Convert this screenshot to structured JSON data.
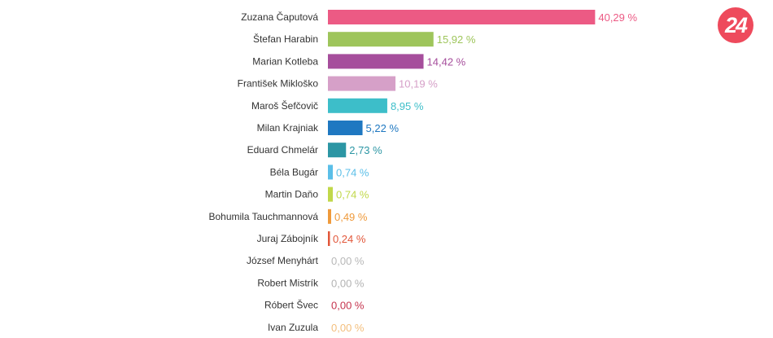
{
  "chart_data": {
    "type": "bar",
    "orientation": "horizontal",
    "categories": [
      "Zuzana Čaputová",
      "Štefan Harabin",
      "Marian Kotleba",
      "František Mikloško",
      "Maroš Šefčovič",
      "Milan Krajniak",
      "Eduard Chmelár",
      "Béla Bugár",
      "Martin Daňo",
      "Bohumila Tauchmannová",
      "Juraj Zábojník",
      "József Menyhárt",
      "Robert Mistrík",
      "Róbert Švec",
      "Ivan Zuzula"
    ],
    "values": [
      40.29,
      15.92,
      14.42,
      10.19,
      8.95,
      5.22,
      2.73,
      0.74,
      0.74,
      0.49,
      0.24,
      0.0,
      0.0,
      0.0,
      0.0
    ],
    "value_labels": [
      "40,29 %",
      "15,92 %",
      "14,42 %",
      "10,19 %",
      "8,95 %",
      "5,22 %",
      "2,73 %",
      "0,74 %",
      "0,74 %",
      "0,49 %",
      "0,24 %",
      "0,00 %",
      "0,00 %",
      "0,00 %",
      "0,00 %"
    ],
    "colors": [
      "#ec5a84",
      "#9ec55b",
      "#a64e9c",
      "#d6a0c8",
      "#3dbec9",
      "#1f78c1",
      "#2c96a4",
      "#5bbfe8",
      "#c1d84a",
      "#ef9a3b",
      "#e2573a",
      "#b8b8b8",
      "#b3b3b3",
      "#c5344e",
      "#f3be7c"
    ],
    "xlim": [
      0,
      45
    ],
    "grid": false,
    "legend": "none"
  },
  "logo": {
    "text": "24",
    "color": "#ee4a5c"
  }
}
